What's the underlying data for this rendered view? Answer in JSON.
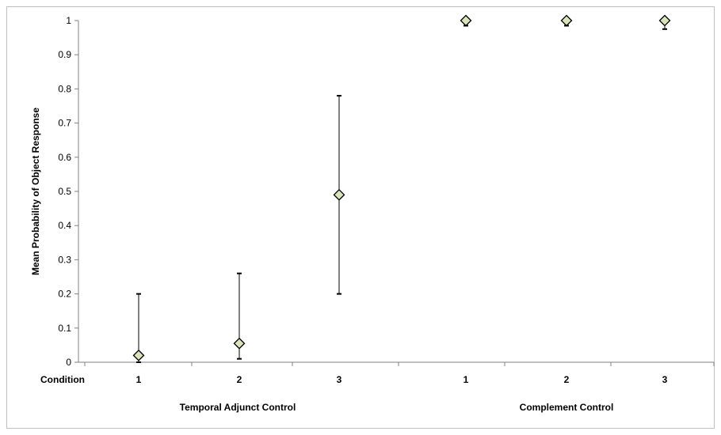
{
  "chart_data": {
    "type": "scatter",
    "title": "",
    "ylabel": "Mean Probability of Object Response",
    "xlabel": "",
    "ylim": [
      0,
      1
    ],
    "yticks": [
      "0",
      "0.1",
      "0.2",
      "0.3",
      "0.4",
      "0.5",
      "0.6",
      "0.7",
      "0.8",
      "0.9",
      "1"
    ],
    "grid": false,
    "legend": "none",
    "condition_label": "Condition",
    "categories": [
      "1",
      "2",
      "3",
      "1",
      "2",
      "3"
    ],
    "groups": [
      {
        "label": "Temporal Adjunct Control",
        "categories": [
          "1",
          "2",
          "3"
        ]
      },
      {
        "label": "Complement Control",
        "categories": [
          "1",
          "2",
          "3"
        ]
      }
    ],
    "series": [
      {
        "values": [
          0.02,
          0.055,
          0.49,
          1.0,
          1.0,
          1.0
        ],
        "error_low": [
          0.0,
          0.01,
          0.2,
          0.985,
          0.985,
          0.975
        ],
        "error_high": [
          0.2,
          0.26,
          0.78,
          1.0,
          1.0,
          1.0
        ]
      }
    ],
    "marker": "diamond",
    "marker_fill": "#d8e4bc",
    "marker_stroke": "#000000"
  }
}
